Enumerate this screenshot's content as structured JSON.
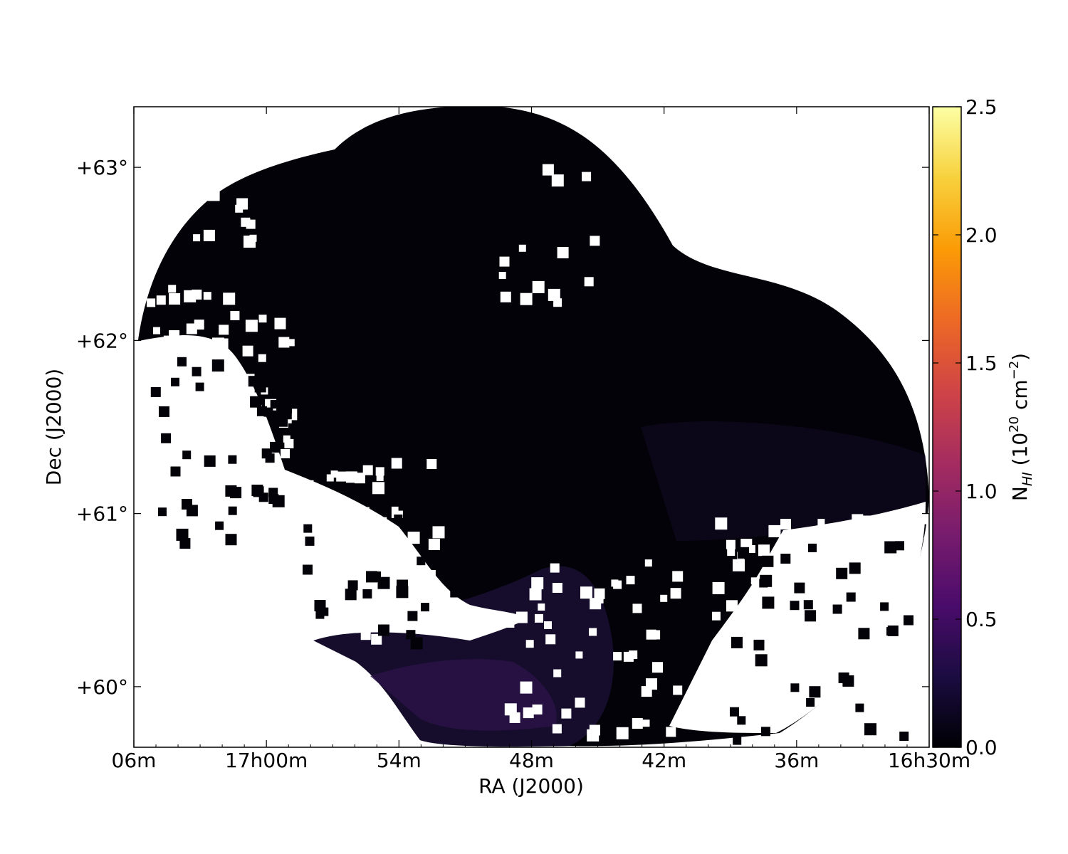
{
  "chart_data": {
    "type": "heatmap",
    "title": "",
    "xlabel": "RA (J2000)",
    "ylabel": "Dec (J2000)",
    "x_ticks": [
      {
        "ra_min": 66,
        "label": "06m"
      },
      {
        "ra_min": 60,
        "label": "17h00m"
      },
      {
        "ra_min": 54,
        "label": "54m"
      },
      {
        "ra_min": 48,
        "label": "48m"
      },
      {
        "ra_min": 42,
        "label": "42m"
      },
      {
        "ra_min": 36,
        "label": "36m"
      },
      {
        "ra_min": 30,
        "label": "16h30m"
      }
    ],
    "y_ticks": [
      {
        "dec": 63,
        "label": "+63°"
      },
      {
        "dec": 62,
        "label": "+62°"
      },
      {
        "dec": 61,
        "label": "+61°"
      },
      {
        "dec": 60,
        "label": "+60°"
      }
    ],
    "xlim_ra_min": [
      66,
      30
    ],
    "ylim_dec": [
      59.65,
      63.35
    ],
    "colorbar": {
      "label_main": "N",
      "label_sub": "HI",
      "label_rest": " (10",
      "label_exp": "20",
      "label_unit": " cm",
      "label_unit_exp": "−2",
      "label_close": ")",
      "range": [
        0.0,
        2.5
      ],
      "ticks": [
        "0.0",
        "0.5",
        "1.0",
        "1.5",
        "2.0",
        "2.5"
      ],
      "colormap": "inferno",
      "colors": [
        "#000004",
        "#1b0c41",
        "#4a0c6b",
        "#781c6d",
        "#a52c60",
        "#cf4446",
        "#ed6925",
        "#fb9b06",
        "#f7d13d",
        "#fcffa4"
      ]
    },
    "map_colors": {
      "background": "#030208",
      "faint_emission": "#160d2c",
      "brighter_emission": "#2a1348",
      "blank": "#ffffff"
    }
  }
}
